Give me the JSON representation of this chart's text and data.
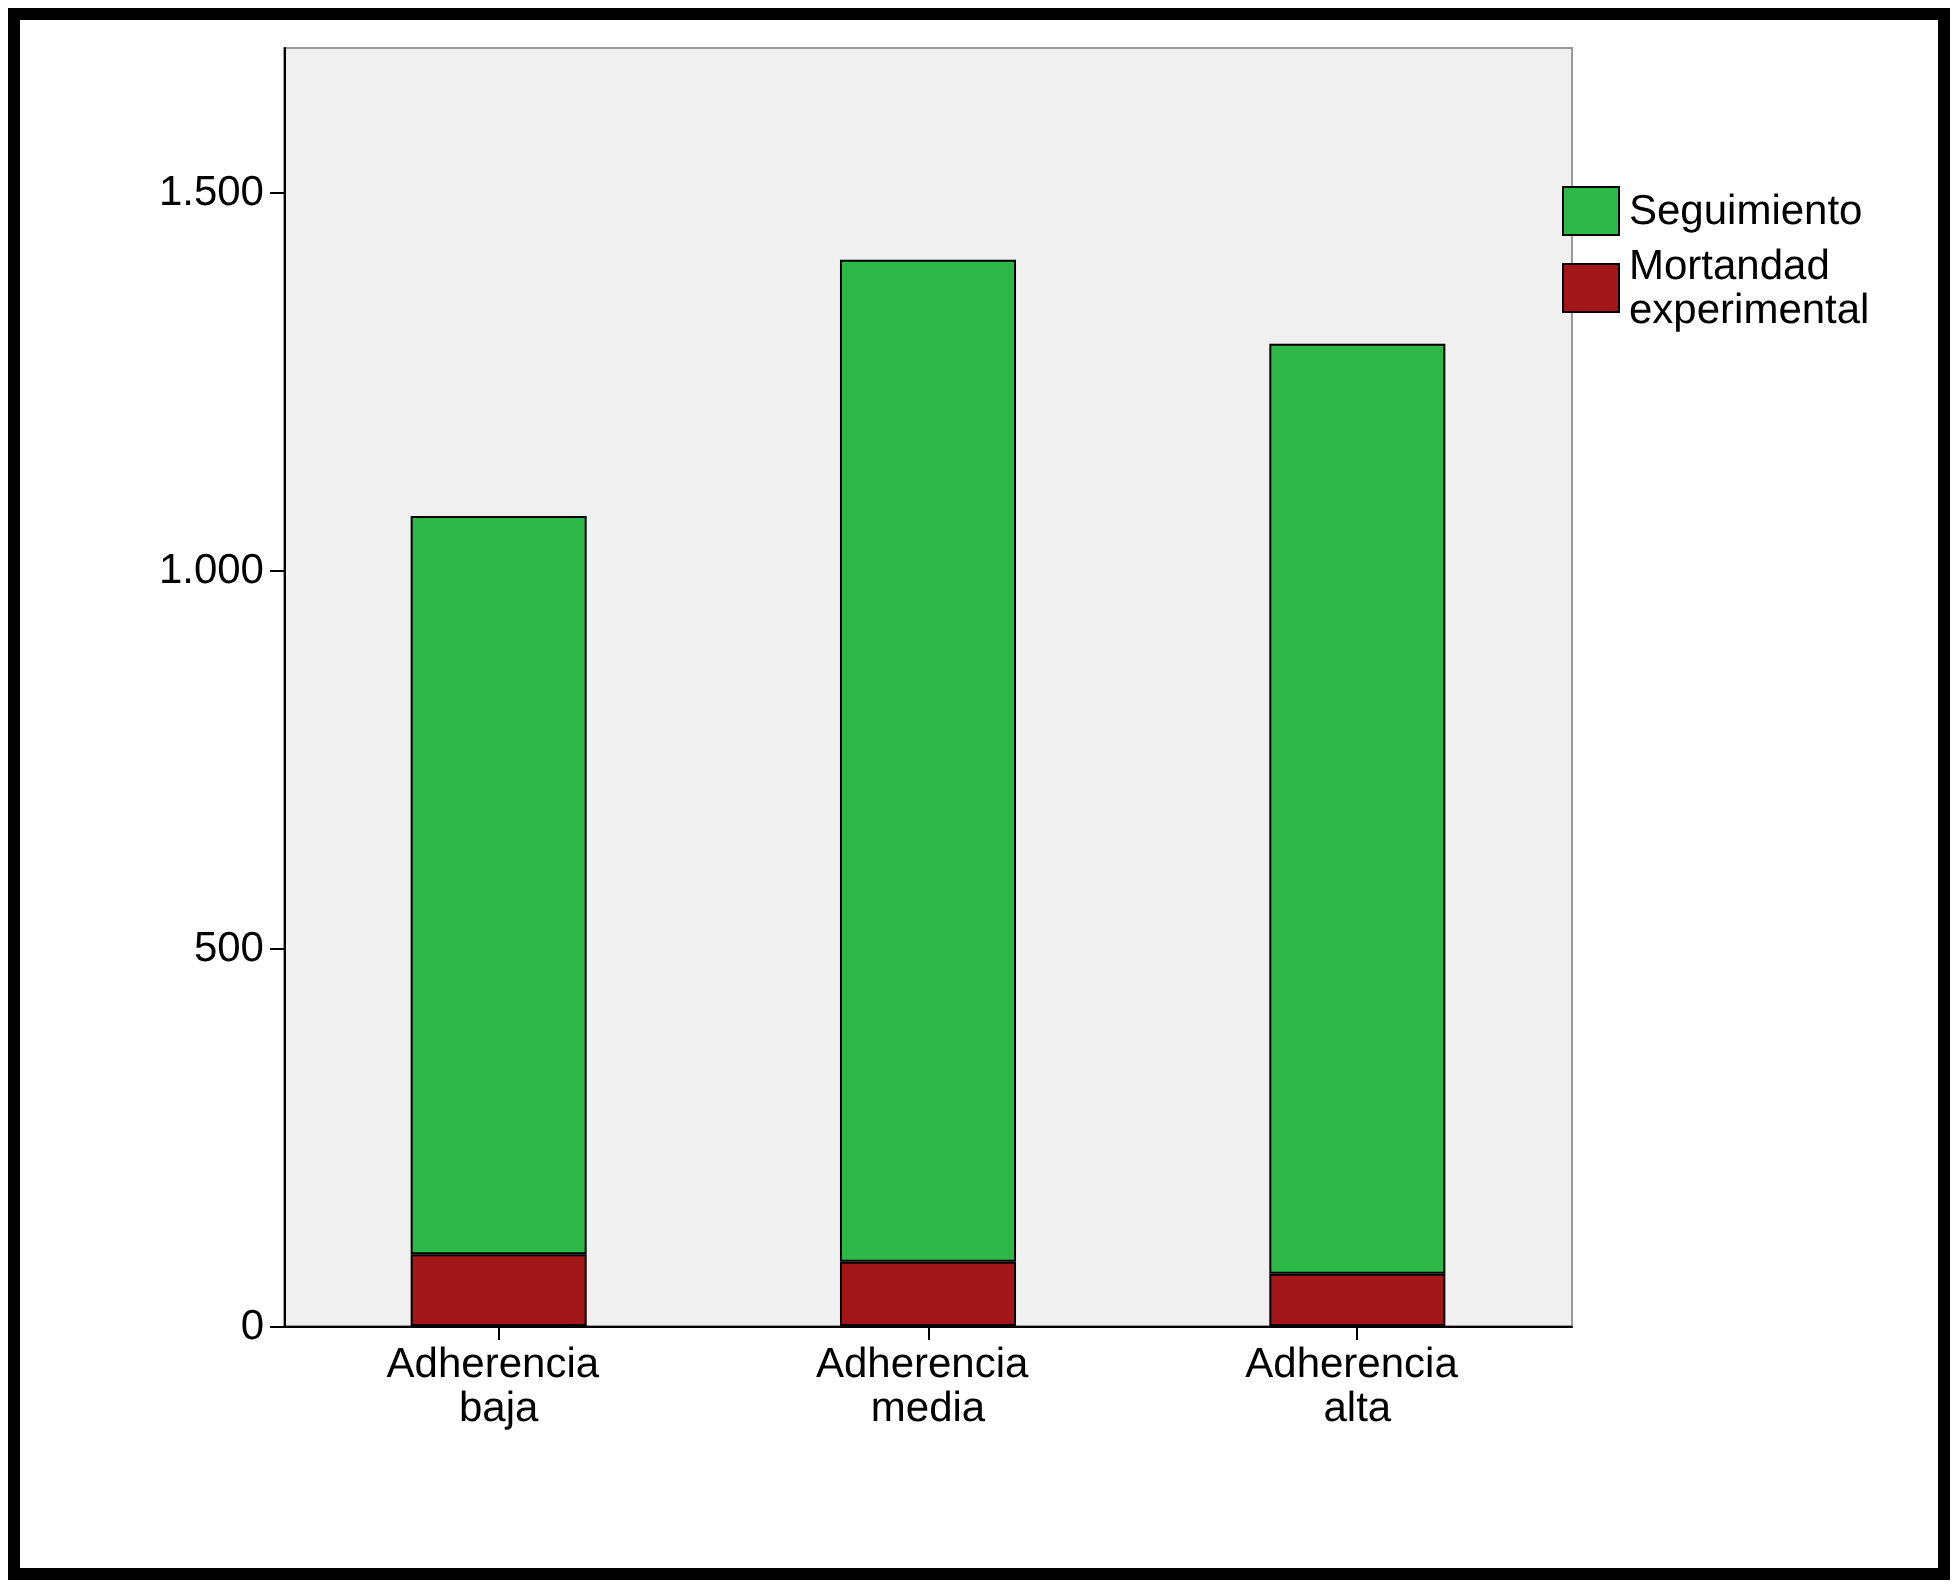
{
  "chart_data": {
    "type": "bar",
    "stacked": true,
    "categories": [
      "Adherencia baja",
      "Adherencia media",
      "Adherencia alta"
    ],
    "series": [
      {
        "name": "Mortandad experimental",
        "color": "#a3161a",
        "values": [
          95,
          85,
          69
        ]
      },
      {
        "name": "Seguimiento",
        "color": "#2fb84a",
        "values": [
          976,
          1325,
          1230
        ]
      }
    ],
    "ylim": [
      0,
      1690
    ],
    "yticks": [
      {
        "value": 0,
        "label": "0"
      },
      {
        "value": 500,
        "label": "500"
      },
      {
        "value": 1000,
        "label": "1.000"
      },
      {
        "value": 1500,
        "label": "1.500"
      }
    ],
    "grid": false,
    "legend": "top right"
  }
}
